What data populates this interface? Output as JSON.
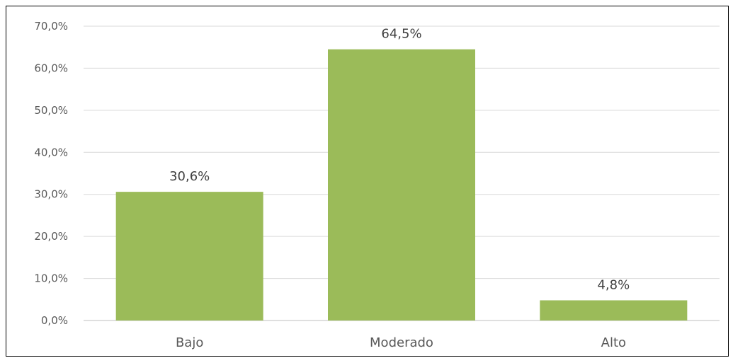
{
  "chart_data": {
    "type": "bar",
    "categories": [
      "Bajo",
      "Moderado",
      "Alto"
    ],
    "values": [
      30.6,
      64.5,
      4.8
    ],
    "data_labels": [
      "30,6%",
      "64,5%",
      "4,8%"
    ],
    "ylim": [
      0,
      70
    ],
    "yticks": [
      0,
      10,
      20,
      30,
      40,
      50,
      60,
      70
    ],
    "ytick_labels": [
      "0,0%",
      "10,0%",
      "20,0%",
      "30,0%",
      "40,0%",
      "50,0%",
      "60,0%",
      "70,0%"
    ],
    "grid": true,
    "bar_color": "#9bbb59",
    "title": "",
    "xlabel": "",
    "ylabel": ""
  }
}
